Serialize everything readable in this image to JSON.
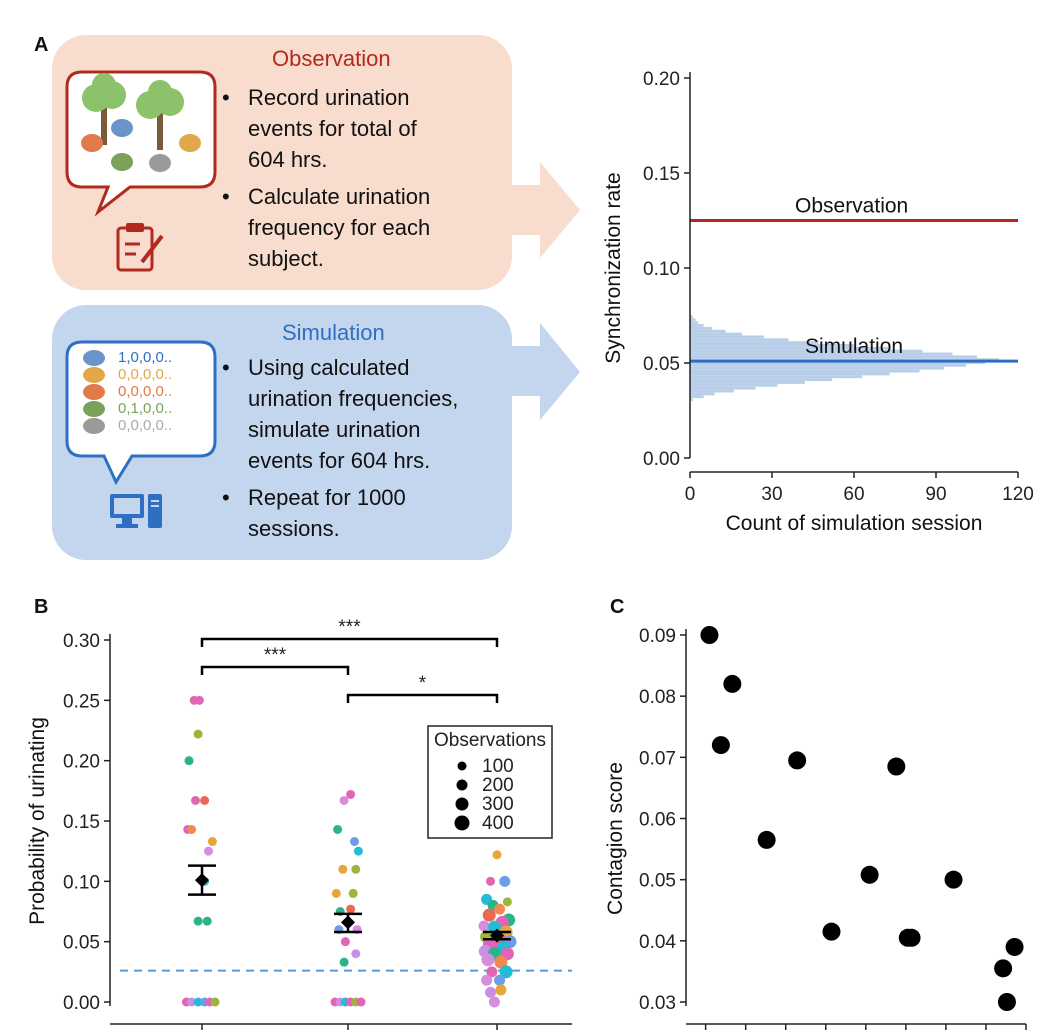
{
  "panelA": {
    "label": "A",
    "observation": {
      "title": "Observation",
      "bullets": [
        [
          "Record urination",
          "events for total of",
          "604 hrs."
        ],
        [
          "Calculate urination",
          "frequency for each",
          "subject."
        ]
      ],
      "icons": [
        "tree-icon",
        "bear-icon",
        "clipboard-icon"
      ]
    },
    "simulation": {
      "title": "Simulation",
      "codes": [
        "1,0,0,0..",
        "0,0,0,0..",
        "0,0,0,0..",
        "0,1,0,0..",
        "0,0,0,0.."
      ],
      "bullets": [
        [
          "Using calculated",
          "urination frequencies,",
          "simulate urination",
          "events for 604 hrs."
        ],
        [
          "Repeat for 1000",
          "sessions."
        ]
      ],
      "icons": [
        "bear-icon",
        "computer-icon"
      ]
    }
  },
  "panelB": {
    "label": "B"
  },
  "panelC": {
    "label": "C"
  },
  "colors": {
    "observation": "#b22a1e",
    "simulation": "#2e6fc4",
    "observation_box": "#f8dccd",
    "simulation_box": "#c3d6ee",
    "histogram": "#b9cfe9",
    "dashed": "#5a9bd8"
  },
  "chart_data": [
    {
      "type": "histogram",
      "panel": "A",
      "title": "",
      "xlabel": "Count of simulation session",
      "ylabel": "Synchronization rate",
      "xlim": [
        0,
        120
      ],
      "ylim": [
        0,
        0.2
      ],
      "xticks": [
        0,
        30,
        60,
        90,
        120
      ],
      "yticks": [
        "0.00",
        "0.05",
        "0.10",
        "0.15",
        "0.20"
      ],
      "bin_width": 0.0015,
      "bins": [
        {
          "y": 0.03,
          "count": 1
        },
        {
          "y": 0.0315,
          "count": 5
        },
        {
          "y": 0.033,
          "count": 9
        },
        {
          "y": 0.0345,
          "count": 16
        },
        {
          "y": 0.036,
          "count": 24
        },
        {
          "y": 0.0375,
          "count": 32
        },
        {
          "y": 0.039,
          "count": 42
        },
        {
          "y": 0.0405,
          "count": 52
        },
        {
          "y": 0.042,
          "count": 63
        },
        {
          "y": 0.0435,
          "count": 73
        },
        {
          "y": 0.045,
          "count": 84
        },
        {
          "y": 0.0465,
          "count": 93
        },
        {
          "y": 0.048,
          "count": 101
        },
        {
          "y": 0.0495,
          "count": 108
        },
        {
          "y": 0.051,
          "count": 113
        },
        {
          "y": 0.0525,
          "count": 105
        },
        {
          "y": 0.054,
          "count": 96
        },
        {
          "y": 0.0555,
          "count": 85
        },
        {
          "y": 0.057,
          "count": 73
        },
        {
          "y": 0.0585,
          "count": 60
        },
        {
          "y": 0.06,
          "count": 47
        },
        {
          "y": 0.0615,
          "count": 36
        },
        {
          "y": 0.063,
          "count": 27
        },
        {
          "y": 0.0645,
          "count": 19
        },
        {
          "y": 0.066,
          "count": 13
        },
        {
          "y": 0.0675,
          "count": 8
        },
        {
          "y": 0.069,
          "count": 5
        },
        {
          "y": 0.0705,
          "count": 3
        },
        {
          "y": 0.072,
          "count": 2
        },
        {
          "y": 0.0735,
          "count": 1
        }
      ],
      "reference_lines": [
        {
          "name": "Observation",
          "y": 0.125,
          "color": "#b22a1e"
        },
        {
          "name": "Simulation",
          "y": 0.051,
          "color": "#2e6fc4"
        }
      ]
    },
    {
      "type": "scatter",
      "panel": "B",
      "title": "",
      "ylabel": "Probability of urinating",
      "ylim": [
        0,
        0.3
      ],
      "yticks": [
        "0.00",
        "0.05",
        "0.10",
        "0.15",
        "0.20",
        "0.25",
        "0.30"
      ],
      "groups": [
        {
          "mean": 0.101,
          "ci": [
            0.089,
            0.113
          ],
          "points": [
            {
              "dx": -0.06,
              "y": 0.25,
              "c": "#e264b5",
              "s": 1
            },
            {
              "dx": -0.02,
              "y": 0.25,
              "c": "#e264b5",
              "s": 1
            },
            {
              "dx": -0.03,
              "y": 0.222,
              "c": "#9fb43b",
              "s": 1
            },
            {
              "dx": -0.1,
              "y": 0.2,
              "c": "#2bb38a",
              "s": 1
            },
            {
              "dx": -0.05,
              "y": 0.167,
              "c": "#e264b5",
              "s": 1
            },
            {
              "dx": 0.02,
              "y": 0.167,
              "c": "#e96a4f",
              "s": 1
            },
            {
              "dx": -0.11,
              "y": 0.143,
              "c": "#e264b5",
              "s": 1
            },
            {
              "dx": -0.08,
              "y": 0.143,
              "c": "#f08a55",
              "s": 1
            },
            {
              "dx": 0.08,
              "y": 0.133,
              "c": "#e8a53a",
              "s": 1
            },
            {
              "dx": 0.05,
              "y": 0.125,
              "c": "#d78ce0",
              "s": 1
            },
            {
              "dx": 0.02,
              "y": 0.1,
              "c": "#23bcd6",
              "s": 1
            },
            {
              "dx": -0.03,
              "y": 0.067,
              "c": "#2bb38a",
              "s": 1
            },
            {
              "dx": 0.04,
              "y": 0.067,
              "c": "#2bb38a",
              "s": 1
            },
            {
              "dx": -0.12,
              "y": 0.0,
              "c": "#e264b5",
              "s": 1
            },
            {
              "dx": -0.08,
              "y": 0.0,
              "c": "#c98fe6",
              "s": 1
            },
            {
              "dx": -0.03,
              "y": 0.0,
              "c": "#23bcd6",
              "s": 1
            },
            {
              "dx": 0.02,
              "y": 0.0,
              "c": "#6c9de6",
              "s": 1
            },
            {
              "dx": 0.06,
              "y": 0.0,
              "c": "#e264b5",
              "s": 1
            },
            {
              "dx": 0.1,
              "y": 0.0,
              "c": "#9fb43b",
              "s": 1
            }
          ]
        },
        {
          "mean": 0.066,
          "ci": [
            0.058,
            0.073
          ],
          "points": [
            {
              "dx": 0.02,
              "y": 0.172,
              "c": "#e264b5",
              "s": 1
            },
            {
              "dx": -0.03,
              "y": 0.167,
              "c": "#d78ce0",
              "s": 1
            },
            {
              "dx": -0.08,
              "y": 0.143,
              "c": "#2bb38a",
              "s": 1
            },
            {
              "dx": 0.05,
              "y": 0.133,
              "c": "#6c9de6",
              "s": 1
            },
            {
              "dx": 0.08,
              "y": 0.125,
              "c": "#23bcd6",
              "s": 1
            },
            {
              "dx": -0.04,
              "y": 0.11,
              "c": "#e8a53a",
              "s": 1
            },
            {
              "dx": 0.06,
              "y": 0.11,
              "c": "#9fb43b",
              "s": 1
            },
            {
              "dx": -0.09,
              "y": 0.09,
              "c": "#e8a53a",
              "s": 1
            },
            {
              "dx": 0.04,
              "y": 0.09,
              "c": "#9fb43b",
              "s": 1
            },
            {
              "dx": -0.06,
              "y": 0.075,
              "c": "#2bb38a",
              "s": 1
            },
            {
              "dx": 0.02,
              "y": 0.077,
              "c": "#e96a4f",
              "s": 1
            },
            {
              "dx": -0.07,
              "y": 0.06,
              "c": "#6c9de6",
              "s": 1
            },
            {
              "dx": 0.07,
              "y": 0.06,
              "c": "#d78ce0",
              "s": 1
            },
            {
              "dx": -0.02,
              "y": 0.05,
              "c": "#e264b5",
              "s": 1
            },
            {
              "dx": 0.06,
              "y": 0.04,
              "c": "#c98fe6",
              "s": 1
            },
            {
              "dx": -0.03,
              "y": 0.033,
              "c": "#2bb38a",
              "s": 1
            },
            {
              "dx": -0.1,
              "y": 0.0,
              "c": "#e264b5",
              "s": 1
            },
            {
              "dx": -0.06,
              "y": 0.0,
              "c": "#c98fe6",
              "s": 1
            },
            {
              "dx": -0.02,
              "y": 0.0,
              "c": "#23bcd6",
              "s": 1
            },
            {
              "dx": 0.02,
              "y": 0.0,
              "c": "#e264b5",
              "s": 1
            },
            {
              "dx": 0.06,
              "y": 0.0,
              "c": "#9fb43b",
              "s": 1
            },
            {
              "dx": 0.1,
              "y": 0.0,
              "c": "#e264b5",
              "s": 1
            }
          ]
        },
        {
          "mean": 0.055,
          "ci": [
            0.052,
            0.058
          ],
          "points": [
            {
              "dx": 0.0,
              "y": 0.122,
              "c": "#e8a53a",
              "s": 1
            },
            {
              "dx": -0.05,
              "y": 0.1,
              "c": "#e264b5",
              "s": 1
            },
            {
              "dx": 0.06,
              "y": 0.1,
              "c": "#6c9de6",
              "s": 2
            },
            {
              "dx": -0.08,
              "y": 0.085,
              "c": "#23bcd6",
              "s": 2
            },
            {
              "dx": 0.08,
              "y": 0.083,
              "c": "#9fb43b",
              "s": 1
            },
            {
              "dx": -0.03,
              "y": 0.08,
              "c": "#2bb38a",
              "s": 2
            },
            {
              "dx": 0.02,
              "y": 0.077,
              "c": "#f08a55",
              "s": 2
            },
            {
              "dx": 0.09,
              "y": 0.068,
              "c": "#2bb38a",
              "s": 3
            },
            {
              "dx": -0.06,
              "y": 0.072,
              "c": "#e96a4f",
              "s": 3
            },
            {
              "dx": 0.04,
              "y": 0.066,
              "c": "#e264b5",
              "s": 3
            },
            {
              "dx": -0.1,
              "y": 0.063,
              "c": "#d78ce0",
              "s": 2
            },
            {
              "dx": -0.02,
              "y": 0.062,
              "c": "#23bcd6",
              "s": 3
            },
            {
              "dx": 0.07,
              "y": 0.058,
              "c": "#e8a53a",
              "s": 3
            },
            {
              "dx": -0.08,
              "y": 0.054,
              "c": "#9fb43b",
              "s": 3
            },
            {
              "dx": 0.01,
              "y": 0.052,
              "c": "#e96a4f",
              "s": 4
            },
            {
              "dx": 0.1,
              "y": 0.05,
              "c": "#6c9de6",
              "s": 3
            },
            {
              "dx": -0.05,
              "y": 0.047,
              "c": "#e264b5",
              "s": 4
            },
            {
              "dx": 0.05,
              "y": 0.045,
              "c": "#23bcd6",
              "s": 3
            },
            {
              "dx": -0.09,
              "y": 0.042,
              "c": "#c98fe6",
              "s": 3
            },
            {
              "dx": 0.08,
              "y": 0.04,
              "c": "#e264b5",
              "s": 3
            },
            {
              "dx": -0.02,
              "y": 0.04,
              "c": "#2bb38a",
              "s": 3
            },
            {
              "dx": -0.07,
              "y": 0.035,
              "c": "#d78ce0",
              "s": 3
            },
            {
              "dx": 0.03,
              "y": 0.033,
              "c": "#f08a55",
              "s": 3
            },
            {
              "dx": -0.04,
              "y": 0.025,
              "c": "#e264b5",
              "s": 2
            },
            {
              "dx": 0.07,
              "y": 0.025,
              "c": "#23bcd6",
              "s": 3
            },
            {
              "dx": -0.08,
              "y": 0.018,
              "c": "#d78ce0",
              "s": 2
            },
            {
              "dx": 0.02,
              "y": 0.018,
              "c": "#6c9de6",
              "s": 2
            },
            {
              "dx": -0.05,
              "y": 0.008,
              "c": "#c98fe6",
              "s": 2
            },
            {
              "dx": 0.03,
              "y": 0.01,
              "c": "#e8a53a",
              "s": 2
            },
            {
              "dx": -0.02,
              "y": 0.0,
              "c": "#d78ce0",
              "s": 2
            }
          ]
        }
      ],
      "chance_line": {
        "y": 0.026
      },
      "significance": [
        {
          "from": 0,
          "to": 2,
          "label": "***"
        },
        {
          "from": 0,
          "to": 1,
          "label": "***"
        },
        {
          "from": 1,
          "to": 2,
          "label": "*"
        }
      ],
      "legend": {
        "title": "Observations",
        "position": "top-right",
        "entries": [
          {
            "label": "100",
            "s": 1
          },
          {
            "label": "200",
            "s": 2
          },
          {
            "label": "300",
            "s": 3
          },
          {
            "label": "400",
            "s": 4
          }
        ]
      }
    },
    {
      "type": "scatter",
      "panel": "C",
      "title": "",
      "ylabel": "Contagion score",
      "ylim": [
        0.03,
        0.09
      ],
      "yticks": [
        "0.03",
        "0.04",
        "0.05",
        "0.06",
        "0.07",
        "0.08",
        "0.09"
      ],
      "xlim": [
        0,
        8.6
      ],
      "x": [
        0.3,
        0.6,
        0.9,
        1.8,
        2.6,
        3.5,
        4.5,
        5.2,
        5.5,
        5.6,
        6.7,
        8.0,
        8.1,
        8.3
      ],
      "y": [
        0.09,
        0.072,
        0.082,
        0.0565,
        0.0695,
        0.0415,
        0.0508,
        0.0685,
        0.0405,
        0.0405,
        0.05,
        0.0355,
        0.03,
        0.039
      ]
    }
  ]
}
